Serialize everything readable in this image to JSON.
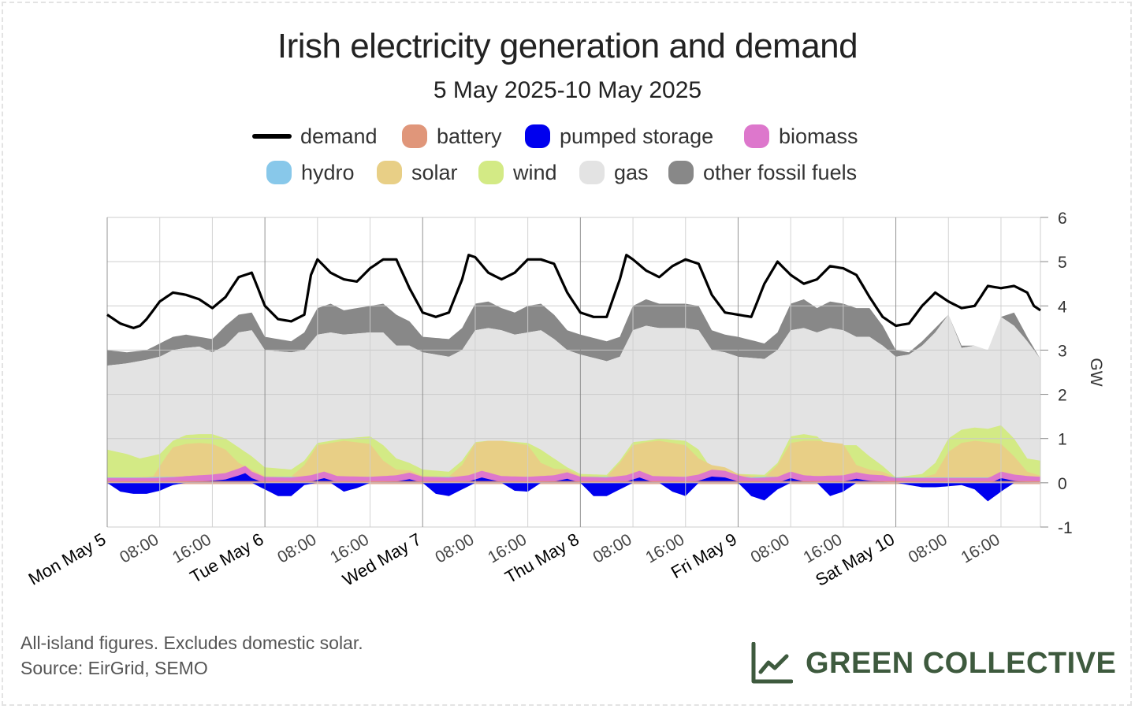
{
  "title": "Irish electricity generation and demand",
  "subtitle": "5 May 2025-10 May 2025",
  "footnote": {
    "line1": "All-island figures. Excludes domestic solar.",
    "line2": "Source: EirGrid, SEMO"
  },
  "brand": {
    "name": "GREEN COLLECTIVE",
    "icon": "line-chart-logo-icon",
    "color": "#3e5a3e"
  },
  "legend": [
    {
      "key": "demand",
      "label": "demand",
      "color": "#000000",
      "kind": "line"
    },
    {
      "key": "battery",
      "label": "battery",
      "color": "#e0967a",
      "kind": "area"
    },
    {
      "key": "pumped",
      "label": "pumped storage",
      "color": "#0000ee",
      "kind": "area"
    },
    {
      "key": "biomass",
      "label": "biomass",
      "color": "#dd77cc",
      "kind": "area"
    },
    {
      "key": "hydro",
      "label": "hydro",
      "color": "#88c8ea",
      "kind": "area"
    },
    {
      "key": "solar",
      "label": "solar",
      "color": "#e8cf86",
      "kind": "area"
    },
    {
      "key": "wind",
      "label": "wind",
      "color": "#d3ea85",
      "kind": "area"
    },
    {
      "key": "gas",
      "label": "gas",
      "color": "#e3e3e3",
      "kind": "area"
    },
    {
      "key": "other",
      "label": "other fossil fuels",
      "color": "#888888",
      "kind": "area"
    }
  ],
  "chart_data": {
    "type": "area",
    "title": "Irish electricity generation and demand",
    "subtitle": "5 May 2025-10 May 2025",
    "ylabel": "GW",
    "ylim": [
      -1,
      6
    ],
    "yticks": [
      "-1",
      "0",
      "1",
      "2",
      "3",
      "4",
      "5",
      "6"
    ],
    "xlim_hours": [
      0,
      142
    ],
    "x_unit": "hours from Mon May 5 00:00",
    "xticks": [
      {
        "h": 0,
        "label": "Mon May 5",
        "major": true
      },
      {
        "h": 8,
        "label": "08:00",
        "major": false
      },
      {
        "h": 16,
        "label": "16:00",
        "major": false
      },
      {
        "h": 24,
        "label": "Tue May 6",
        "major": true
      },
      {
        "h": 32,
        "label": "08:00",
        "major": false
      },
      {
        "h": 40,
        "label": "16:00",
        "major": false
      },
      {
        "h": 48,
        "label": "Wed May 7",
        "major": true
      },
      {
        "h": 56,
        "label": "08:00",
        "major": false
      },
      {
        "h": 64,
        "label": "16:00",
        "major": false
      },
      {
        "h": 72,
        "label": "Thu May 8",
        "major": true
      },
      {
        "h": 80,
        "label": "08:00",
        "major": false
      },
      {
        "h": 88,
        "label": "16:00",
        "major": false
      },
      {
        "h": 96,
        "label": "Fri May 9",
        "major": true
      },
      {
        "h": 104,
        "label": "08:00",
        "major": false
      },
      {
        "h": 112,
        "label": "16:00",
        "major": false
      },
      {
        "h": 120,
        "label": "Sat May 10",
        "major": true
      },
      {
        "h": 128,
        "label": "08:00",
        "major": false
      },
      {
        "h": 136,
        "label": "16:00",
        "major": false
      }
    ],
    "grid": true,
    "legend_position": "top",
    "stack_top_gw": {
      "battery_hydro": {
        "x": [
          0,
          6,
          10,
          12,
          14,
          16,
          18,
          20,
          21,
          22,
          24,
          28,
          31,
          33,
          35,
          40,
          44,
          46,
          48,
          52,
          55,
          57,
          60,
          64,
          68,
          70,
          72,
          76,
          79,
          81,
          83,
          88,
          90,
          92,
          94,
          96,
          98,
          102,
          104,
          106,
          108,
          112,
          114,
          116,
          118,
          120,
          124,
          128,
          134,
          136,
          138,
          140,
          142
        ],
        "y": [
          0.12,
          0.12,
          0.15,
          0.18,
          0.2,
          0.22,
          0.26,
          0.38,
          0.45,
          0.3,
          0.15,
          0.14,
          0.2,
          0.3,
          0.18,
          0.16,
          0.2,
          0.27,
          0.16,
          0.14,
          0.2,
          0.32,
          0.18,
          0.16,
          0.2,
          0.28,
          0.16,
          0.14,
          0.2,
          0.32,
          0.18,
          0.16,
          0.22,
          0.35,
          0.32,
          0.2,
          0.12,
          0.16,
          0.3,
          0.2,
          0.18,
          0.2,
          0.28,
          0.22,
          0.2,
          0.12,
          0.12,
          0.12,
          0.12,
          0.3,
          0.22,
          0.18,
          0.16
        ]
      },
      "solar": {
        "x": [
          0,
          4,
          7,
          9,
          10,
          12,
          14,
          16,
          18,
          20,
          22,
          24,
          28,
          30,
          32,
          34,
          36,
          40,
          42,
          44,
          46,
          48,
          52,
          54,
          56,
          58,
          60,
          64,
          66,
          68,
          70,
          72,
          76,
          78,
          80,
          82,
          84,
          88,
          90,
          92,
          94,
          96,
          100,
          102,
          104,
          106,
          108,
          112,
          114,
          116,
          118,
          120,
          124,
          126,
          128,
          130,
          132,
          136,
          138,
          140,
          142
        ],
        "y": [
          0.12,
          0.12,
          0.15,
          0.6,
          0.8,
          0.88,
          0.9,
          0.88,
          0.75,
          0.45,
          0.3,
          0.15,
          0.14,
          0.4,
          0.85,
          0.9,
          0.95,
          0.88,
          0.5,
          0.3,
          0.28,
          0.16,
          0.14,
          0.4,
          0.9,
          0.95,
          0.95,
          0.85,
          0.45,
          0.32,
          0.3,
          0.16,
          0.14,
          0.45,
          0.85,
          0.92,
          0.95,
          0.85,
          0.55,
          0.4,
          0.35,
          0.2,
          0.12,
          0.4,
          0.9,
          0.95,
          0.95,
          0.88,
          0.4,
          0.3,
          0.25,
          0.12,
          0.12,
          0.2,
          0.7,
          0.9,
          0.95,
          0.88,
          0.6,
          0.25,
          0.16
        ]
      },
      "wind": {
        "x": [
          0,
          3,
          5,
          8,
          10,
          12,
          14,
          16,
          18,
          20,
          22,
          24,
          28,
          30,
          32,
          34,
          36,
          40,
          42,
          44,
          46,
          48,
          52,
          54,
          56,
          58,
          60,
          64,
          66,
          68,
          70,
          72,
          76,
          78,
          80,
          82,
          84,
          88,
          90,
          92,
          94,
          96,
          100,
          102,
          104,
          106,
          108,
          110,
          112,
          114,
          116,
          118,
          120,
          124,
          126,
          128,
          130,
          132,
          134,
          136,
          138,
          140,
          142
        ],
        "y": [
          0.75,
          0.65,
          0.55,
          0.65,
          0.95,
          1.08,
          1.1,
          1.1,
          1.0,
          0.8,
          0.6,
          0.35,
          0.3,
          0.5,
          0.9,
          0.95,
          1.0,
          1.05,
          0.85,
          0.55,
          0.45,
          0.3,
          0.25,
          0.5,
          0.92,
          0.95,
          0.95,
          0.9,
          0.75,
          0.55,
          0.35,
          0.2,
          0.18,
          0.5,
          0.92,
          0.95,
          1.0,
          0.95,
          0.75,
          0.3,
          0.25,
          0.2,
          0.18,
          0.45,
          1.05,
          1.1,
          1.05,
          0.8,
          0.85,
          0.85,
          0.6,
          0.38,
          0.12,
          0.2,
          0.45,
          1.0,
          1.2,
          1.25,
          1.22,
          1.3,
          1.0,
          0.55,
          0.5
        ]
      },
      "gas": {
        "x": [
          0,
          3,
          6,
          8,
          10,
          12,
          14,
          16,
          18,
          20,
          22,
          24,
          28,
          30,
          32,
          34,
          36,
          40,
          42,
          44,
          46,
          48,
          52,
          54,
          56,
          58,
          60,
          62,
          64,
          66,
          68,
          70,
          72,
          76,
          78,
          80,
          82,
          84,
          88,
          90,
          92,
          94,
          96,
          100,
          102,
          104,
          106,
          108,
          110,
          112,
          114,
          116,
          118,
          120,
          122,
          124,
          126,
          128,
          130,
          132,
          134,
          136,
          138,
          140,
          142
        ],
        "y": [
          2.65,
          2.7,
          2.78,
          2.85,
          3.0,
          3.05,
          3.08,
          2.95,
          3.1,
          3.4,
          3.45,
          3.0,
          2.95,
          3.0,
          3.35,
          3.4,
          3.35,
          3.4,
          3.4,
          3.1,
          3.1,
          2.95,
          2.85,
          3.0,
          3.45,
          3.5,
          3.45,
          3.35,
          3.4,
          3.45,
          3.25,
          3.0,
          2.9,
          2.75,
          2.85,
          3.45,
          3.55,
          3.5,
          3.5,
          3.45,
          3.0,
          2.95,
          2.85,
          2.8,
          3.0,
          3.45,
          3.5,
          3.4,
          3.5,
          3.45,
          3.3,
          3.3,
          3.1,
          2.85,
          2.9,
          3.1,
          3.4,
          3.8,
          3.05,
          3.1,
          3.0,
          3.75,
          3.55,
          3.2,
          2.8
        ]
      },
      "other": {
        "x": [
          0,
          3,
          6,
          8,
          10,
          12,
          14,
          16,
          18,
          20,
          22,
          24,
          28,
          30,
          32,
          34,
          36,
          40,
          42,
          44,
          46,
          48,
          52,
          54,
          56,
          58,
          60,
          62,
          64,
          66,
          68,
          70,
          72,
          76,
          78,
          80,
          82,
          84,
          88,
          90,
          92,
          94,
          96,
          100,
          102,
          104,
          106,
          108,
          110,
          112,
          114,
          116,
          118,
          120,
          122,
          124,
          126,
          128,
          130,
          132,
          134,
          136,
          138,
          140,
          142
        ],
        "y": [
          3.0,
          2.95,
          3.0,
          3.15,
          3.3,
          3.35,
          3.3,
          3.25,
          3.55,
          3.8,
          3.85,
          3.3,
          3.2,
          3.4,
          3.95,
          4.05,
          3.9,
          4.0,
          4.05,
          3.8,
          3.65,
          3.3,
          3.25,
          3.5,
          4.05,
          4.1,
          3.95,
          3.85,
          4.0,
          4.05,
          3.8,
          3.45,
          3.35,
          3.2,
          3.3,
          4.0,
          4.15,
          4.05,
          4.05,
          4.0,
          3.45,
          3.35,
          3.3,
          3.15,
          3.4,
          4.05,
          4.15,
          3.95,
          4.1,
          4.05,
          3.95,
          3.95,
          3.55,
          3.0,
          2.95,
          3.2,
          3.5,
          3.8,
          3.1,
          3.1,
          3.0,
          3.75,
          3.85,
          3.3,
          2.8
        ]
      }
    },
    "pumped_storage_negative_gw": {
      "x": [
        0,
        1,
        2,
        4,
        6,
        8,
        10,
        12,
        14,
        16,
        18,
        20,
        22,
        24,
        26,
        28,
        30,
        32,
        34,
        36,
        38,
        40,
        42,
        44,
        46,
        48,
        50,
        52,
        54,
        56,
        58,
        60,
        62,
        64,
        66,
        68,
        70,
        72,
        74,
        76,
        78,
        80,
        82,
        84,
        86,
        88,
        90,
        92,
        94,
        96,
        98,
        100,
        102,
        104,
        106,
        108,
        110,
        112,
        114,
        116,
        118,
        120,
        122,
        124,
        126,
        128,
        130,
        132,
        134,
        136,
        138,
        140,
        142
      ],
      "y": [
        0,
        -0.1,
        -0.2,
        -0.25,
        -0.25,
        -0.18,
        -0.05,
        0,
        0,
        0,
        0,
        0,
        0,
        -0.15,
        -0.3,
        -0.3,
        -0.05,
        0,
        0,
        -0.2,
        -0.12,
        0,
        0,
        0,
        0,
        0,
        -0.25,
        -0.3,
        -0.15,
        0,
        0,
        0,
        -0.18,
        -0.2,
        0,
        0,
        0,
        0,
        -0.3,
        -0.3,
        -0.15,
        0,
        0,
        0,
        -0.2,
        -0.3,
        0,
        0,
        0,
        0,
        -0.3,
        -0.4,
        -0.15,
        0,
        0,
        0,
        -0.3,
        -0.2,
        0,
        0,
        0,
        0,
        -0.05,
        -0.1,
        -0.1,
        -0.08,
        -0.05,
        -0.15,
        -0.42,
        -0.2,
        0,
        0,
        0
      ]
    },
    "demand_gw": {
      "x": [
        0,
        2,
        4,
        5,
        6,
        8,
        10,
        12,
        14,
        16,
        18,
        20,
        21,
        22,
        24,
        26,
        28,
        30,
        31,
        32,
        34,
        36,
        38,
        40,
        42,
        44,
        46,
        48,
        50,
        52,
        54,
        55,
        56,
        58,
        60,
        62,
        64,
        66,
        68,
        70,
        72,
        74,
        76,
        78,
        79,
        80,
        82,
        84,
        86,
        88,
        90,
        92,
        94,
        96,
        98,
        100,
        102,
        103,
        104,
        106,
        108,
        110,
        112,
        114,
        116,
        118,
        120,
        122,
        124,
        126,
        128,
        130,
        132,
        134,
        136,
        138,
        140,
        141,
        142
      ],
      "y": [
        3.8,
        3.6,
        3.5,
        3.55,
        3.7,
        4.1,
        4.3,
        4.25,
        4.15,
        3.95,
        4.2,
        4.65,
        4.7,
        4.75,
        4.0,
        3.7,
        3.65,
        3.8,
        4.7,
        5.05,
        4.75,
        4.6,
        4.55,
        4.85,
        5.05,
        5.05,
        4.4,
        3.85,
        3.75,
        3.85,
        4.6,
        5.15,
        5.1,
        4.75,
        4.6,
        4.75,
        5.05,
        5.05,
        4.95,
        4.3,
        3.85,
        3.75,
        3.75,
        4.6,
        5.15,
        5.05,
        4.8,
        4.65,
        4.9,
        5.05,
        4.95,
        4.25,
        3.85,
        3.8,
        3.75,
        4.5,
        5.0,
        4.85,
        4.7,
        4.5,
        4.6,
        4.9,
        4.85,
        4.7,
        4.2,
        3.75,
        3.55,
        3.6,
        4.0,
        4.3,
        4.1,
        3.95,
        4.0,
        4.45,
        4.4,
        4.45,
        4.3,
        4.0,
        3.9
      ]
    }
  }
}
